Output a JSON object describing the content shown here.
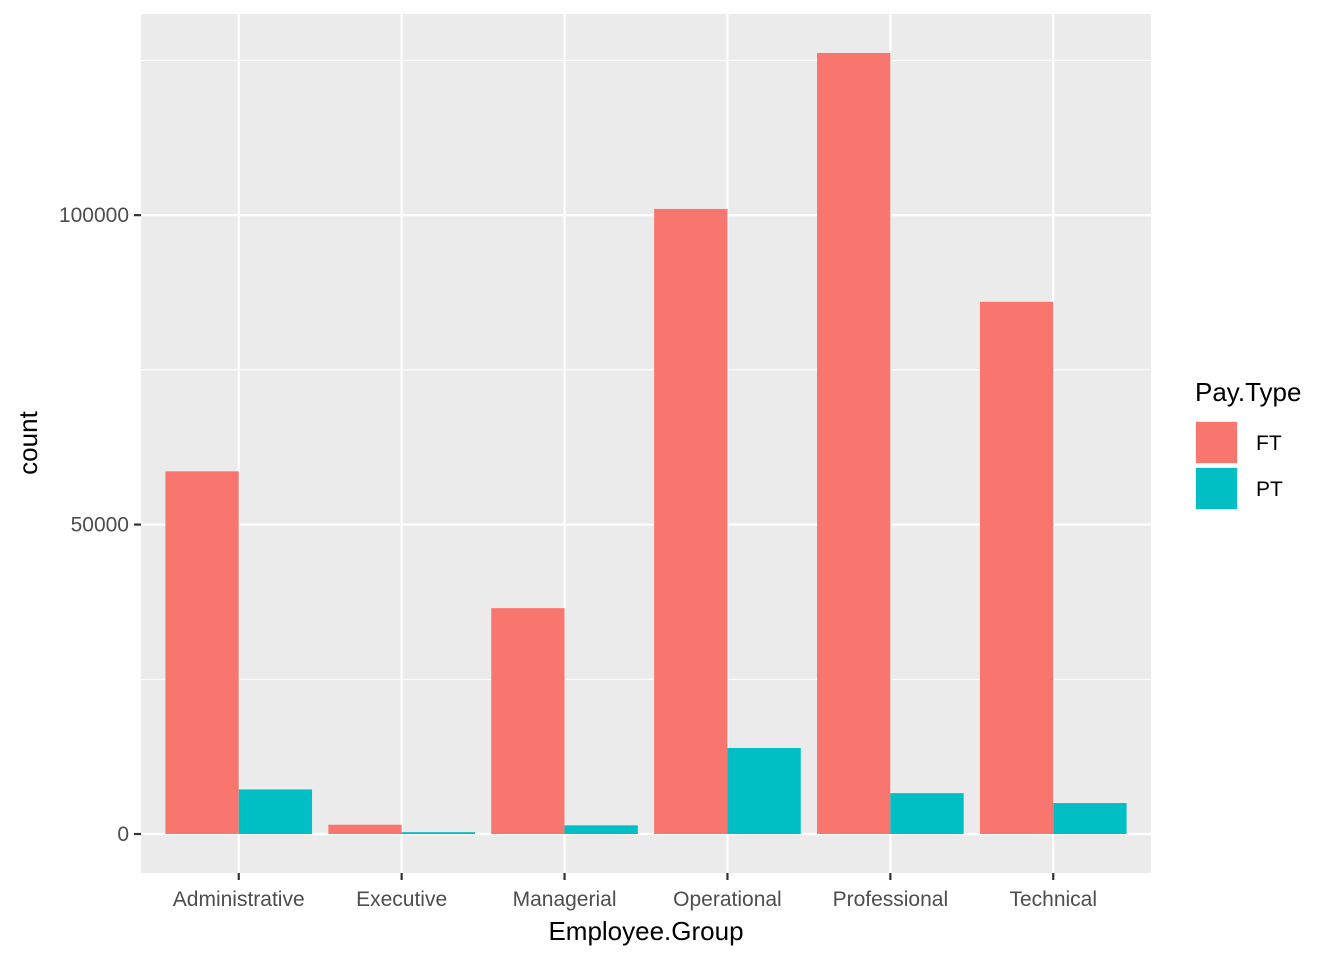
{
  "chart_data": {
    "type": "bar",
    "xlabel": "Employee.Group",
    "ylabel": "count",
    "categories": [
      "Administrative",
      "Executive",
      "Managerial",
      "Operational",
      "Professional",
      "Technical"
    ],
    "series": [
      {
        "name": "FT",
        "color": "#F8766D",
        "values": [
          58600,
          1500,
          36500,
          101000,
          126200,
          86000
        ]
      },
      {
        "name": "PT",
        "color": "#00BFC4",
        "values": [
          7200,
          300,
          1400,
          13900,
          6600,
          5000
        ]
      }
    ],
    "ylim": [
      -6300,
      132500
    ],
    "yticks": [
      0,
      50000,
      100000
    ],
    "ytick_labels": [
      "0",
      "50000",
      "100000"
    ],
    "grid": true,
    "legend": {
      "title": "Pay.Type",
      "placement": "right"
    }
  }
}
